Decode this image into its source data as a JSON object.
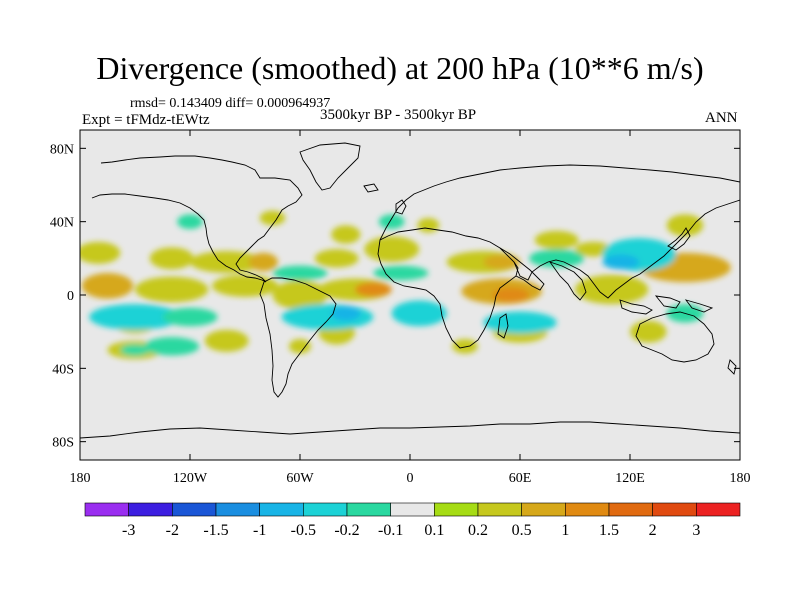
{
  "header": {
    "title": "Divergence (smoothed) at 200 hPa (10**6 m/s)",
    "stats": "rmsd= 0.143409 diff= 0.000964937",
    "experiment": "Expt = tFMdz-tEWtz",
    "period": "3500kyr BP - 3500kyr BP",
    "season": "ANN"
  },
  "axes": {
    "lon_labels": [
      "180",
      "120W",
      "60W",
      "0",
      "60E",
      "120E",
      "180"
    ],
    "lat_labels": [
      "80N",
      "40N",
      "0",
      "40S",
      "80S"
    ]
  },
  "colorbar": {
    "colors": [
      "#9a2ef0",
      "#3c1ee0",
      "#1a56d6",
      "#1a8ee0",
      "#18b4e6",
      "#1cd2d6",
      "#2ad8a0",
      "#e8e8e8",
      "#a6dc14",
      "#c6c81e",
      "#d6a81a",
      "#e08a12",
      "#e06a10",
      "#e04a10",
      "#ec2222"
    ],
    "labels": [
      "-3",
      "-2",
      "-1.5",
      "-1",
      "-0.5",
      "-0.2",
      "-0.1",
      "0.1",
      "0.2",
      "0.5",
      "1",
      "1.5",
      "2",
      "3"
    ]
  },
  "map": {
    "ocean_color": "#e8e8e8",
    "blobs": [
      {
        "lon": -170,
        "lat": 23,
        "rx": 12,
        "ry": 6,
        "v": 0.2
      },
      {
        "lon": -130,
        "lat": 20,
        "rx": 12,
        "ry": 6,
        "v": 0.2
      },
      {
        "lon": -100,
        "lat": 18,
        "rx": 20,
        "ry": 6,
        "v": 0.2
      },
      {
        "lon": -80,
        "lat": 18,
        "rx": 8,
        "ry": 5,
        "v": 0.5
      },
      {
        "lon": -75,
        "lat": 42,
        "rx": 7,
        "ry": 4,
        "v": 0.2
      },
      {
        "lon": -40,
        "lat": 20,
        "rx": 12,
        "ry": 5,
        "v": 0.2
      },
      {
        "lon": -10,
        "lat": 25,
        "rx": 15,
        "ry": 7,
        "v": 0.2
      },
      {
        "lon": -35,
        "lat": 33,
        "rx": 8,
        "ry": 5,
        "v": 0.2
      },
      {
        "lon": 10,
        "lat": 38,
        "rx": 6,
        "ry": 4,
        "v": 0.2
      },
      {
        "lon": 40,
        "lat": 18,
        "rx": 20,
        "ry": 6,
        "v": 0.2
      },
      {
        "lon": 50,
        "lat": 18,
        "rx": 10,
        "ry": 4,
        "v": 0.5
      },
      {
        "lon": 80,
        "lat": 30,
        "rx": 12,
        "ry": 5,
        "v": 0.2
      },
      {
        "lon": 100,
        "lat": 25,
        "rx": 10,
        "ry": 4,
        "v": 0.2
      },
      {
        "lon": 150,
        "lat": 38,
        "rx": 10,
        "ry": 6,
        "v": 0.2
      },
      {
        "lon": 150,
        "lat": 15,
        "rx": 25,
        "ry": 8,
        "v": 0.5
      },
      {
        "lon": -165,
        "lat": 5,
        "rx": 14,
        "ry": 7,
        "v": 0.5
      },
      {
        "lon": -130,
        "lat": 3,
        "rx": 20,
        "ry": 7,
        "v": 0.2
      },
      {
        "lon": -90,
        "lat": 5,
        "rx": 18,
        "ry": 6,
        "v": 0.2
      },
      {
        "lon": -60,
        "lat": 0,
        "rx": 15,
        "ry": 8,
        "v": 0.2
      },
      {
        "lon": -30,
        "lat": 3,
        "rx": 20,
        "ry": 6,
        "v": 0.2
      },
      {
        "lon": -20,
        "lat": 3,
        "rx": 10,
        "ry": 4,
        "v": 1
      },
      {
        "lon": 50,
        "lat": 2,
        "rx": 22,
        "ry": 7,
        "v": 0.5
      },
      {
        "lon": 55,
        "lat": 0,
        "rx": 10,
        "ry": 4,
        "v": 1
      },
      {
        "lon": 110,
        "lat": 3,
        "rx": 20,
        "ry": 8,
        "v": 0.2
      },
      {
        "lon": -150,
        "lat": -15,
        "rx": 12,
        "ry": 6,
        "v": 0.2
      },
      {
        "lon": -100,
        "lat": -25,
        "rx": 12,
        "ry": 6,
        "v": 0.2
      },
      {
        "lon": -40,
        "lat": -20,
        "rx": 10,
        "ry": 7,
        "v": 0.2
      },
      {
        "lon": 60,
        "lat": -20,
        "rx": 15,
        "ry": 6,
        "v": 0.2
      },
      {
        "lon": 130,
        "lat": -20,
        "rx": 10,
        "ry": 6,
        "v": 0.2
      },
      {
        "lon": -150,
        "lat": -30,
        "rx": 15,
        "ry": 5,
        "v": 0.2
      },
      {
        "lon": -60,
        "lat": -28,
        "rx": 6,
        "ry": 4,
        "v": 0.2
      },
      {
        "lon": 30,
        "lat": -28,
        "rx": 7,
        "ry": 4,
        "v": 0.2
      },
      {
        "lon": -120,
        "lat": 40,
        "rx": 7,
        "ry": 4,
        "v": -0.2
      },
      {
        "lon": -10,
        "lat": 40,
        "rx": 7,
        "ry": 4,
        "v": -0.2
      },
      {
        "lon": 80,
        "lat": 20,
        "rx": 15,
        "ry": 5,
        "v": -0.2
      },
      {
        "lon": 125,
        "lat": 22,
        "rx": 20,
        "ry": 9,
        "v": -0.5
      },
      {
        "lon": 115,
        "lat": 18,
        "rx": 10,
        "ry": 4,
        "v": -1
      },
      {
        "lon": -60,
        "lat": 12,
        "rx": 15,
        "ry": 4,
        "v": -0.2
      },
      {
        "lon": -5,
        "lat": 12,
        "rx": 15,
        "ry": 4,
        "v": -0.2
      },
      {
        "lon": -150,
        "lat": -12,
        "rx": 25,
        "ry": 7,
        "v": -0.5
      },
      {
        "lon": -120,
        "lat": -12,
        "rx": 15,
        "ry": 5,
        "v": -0.2
      },
      {
        "lon": -45,
        "lat": -12,
        "rx": 25,
        "ry": 7,
        "v": -0.5
      },
      {
        "lon": -35,
        "lat": -10,
        "rx": 8,
        "ry": 4,
        "v": -1
      },
      {
        "lon": 5,
        "lat": -10,
        "rx": 15,
        "ry": 7,
        "v": -0.5
      },
      {
        "lon": 60,
        "lat": -15,
        "rx": 20,
        "ry": 6,
        "v": -0.5
      },
      {
        "lon": -130,
        "lat": -28,
        "rx": 15,
        "ry": 5,
        "v": -0.2
      },
      {
        "lon": -150,
        "lat": -30,
        "rx": 8,
        "ry": 3,
        "v": -0.2
      },
      {
        "lon": 150,
        "lat": -10,
        "rx": 10,
        "ry": 5,
        "v": -0.2
      }
    ]
  }
}
